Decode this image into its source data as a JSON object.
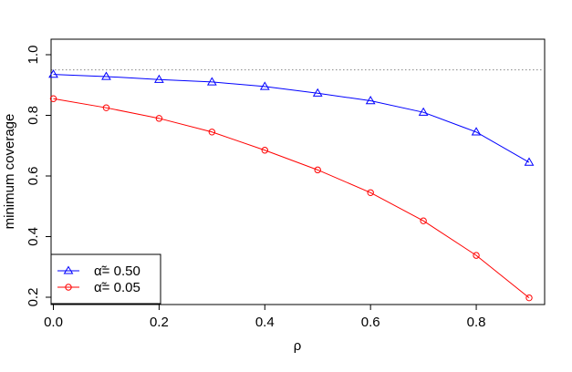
{
  "chart_data": {
    "type": "line",
    "xlabel": "ρ",
    "ylabel": "minimum coverage",
    "xlim": [
      0,
      0.9
    ],
    "ylim": [
      0.2,
      1.0
    ],
    "x_ticks": [
      "0.0",
      "0.2",
      "0.4",
      "0.6",
      "0.8"
    ],
    "y_ticks": [
      "0.2",
      "0.4",
      "0.6",
      "0.8",
      "1.0"
    ],
    "reference_line": {
      "y": 0.95,
      "style": "dotted",
      "color": "#888888"
    },
    "legend": {
      "position": "bottom-left"
    },
    "series": [
      {
        "name": "α̃= 0.50",
        "color": "#0000ff",
        "marker": "triangle",
        "x": [
          0.0,
          0.1,
          0.2,
          0.3,
          0.4,
          0.5,
          0.6,
          0.7,
          0.8,
          0.9
        ],
        "values": [
          0.935,
          0.928,
          0.918,
          0.91,
          0.895,
          0.873,
          0.848,
          0.81,
          0.745,
          0.645
        ]
      },
      {
        "name": "α̃= 0.05",
        "color": "#ff0000",
        "marker": "circle",
        "x": [
          0.0,
          0.1,
          0.2,
          0.3,
          0.4,
          0.5,
          0.6,
          0.7,
          0.8,
          0.9
        ],
        "values": [
          0.855,
          0.825,
          0.79,
          0.745,
          0.685,
          0.62,
          0.545,
          0.452,
          0.338,
          0.198
        ]
      }
    ]
  }
}
